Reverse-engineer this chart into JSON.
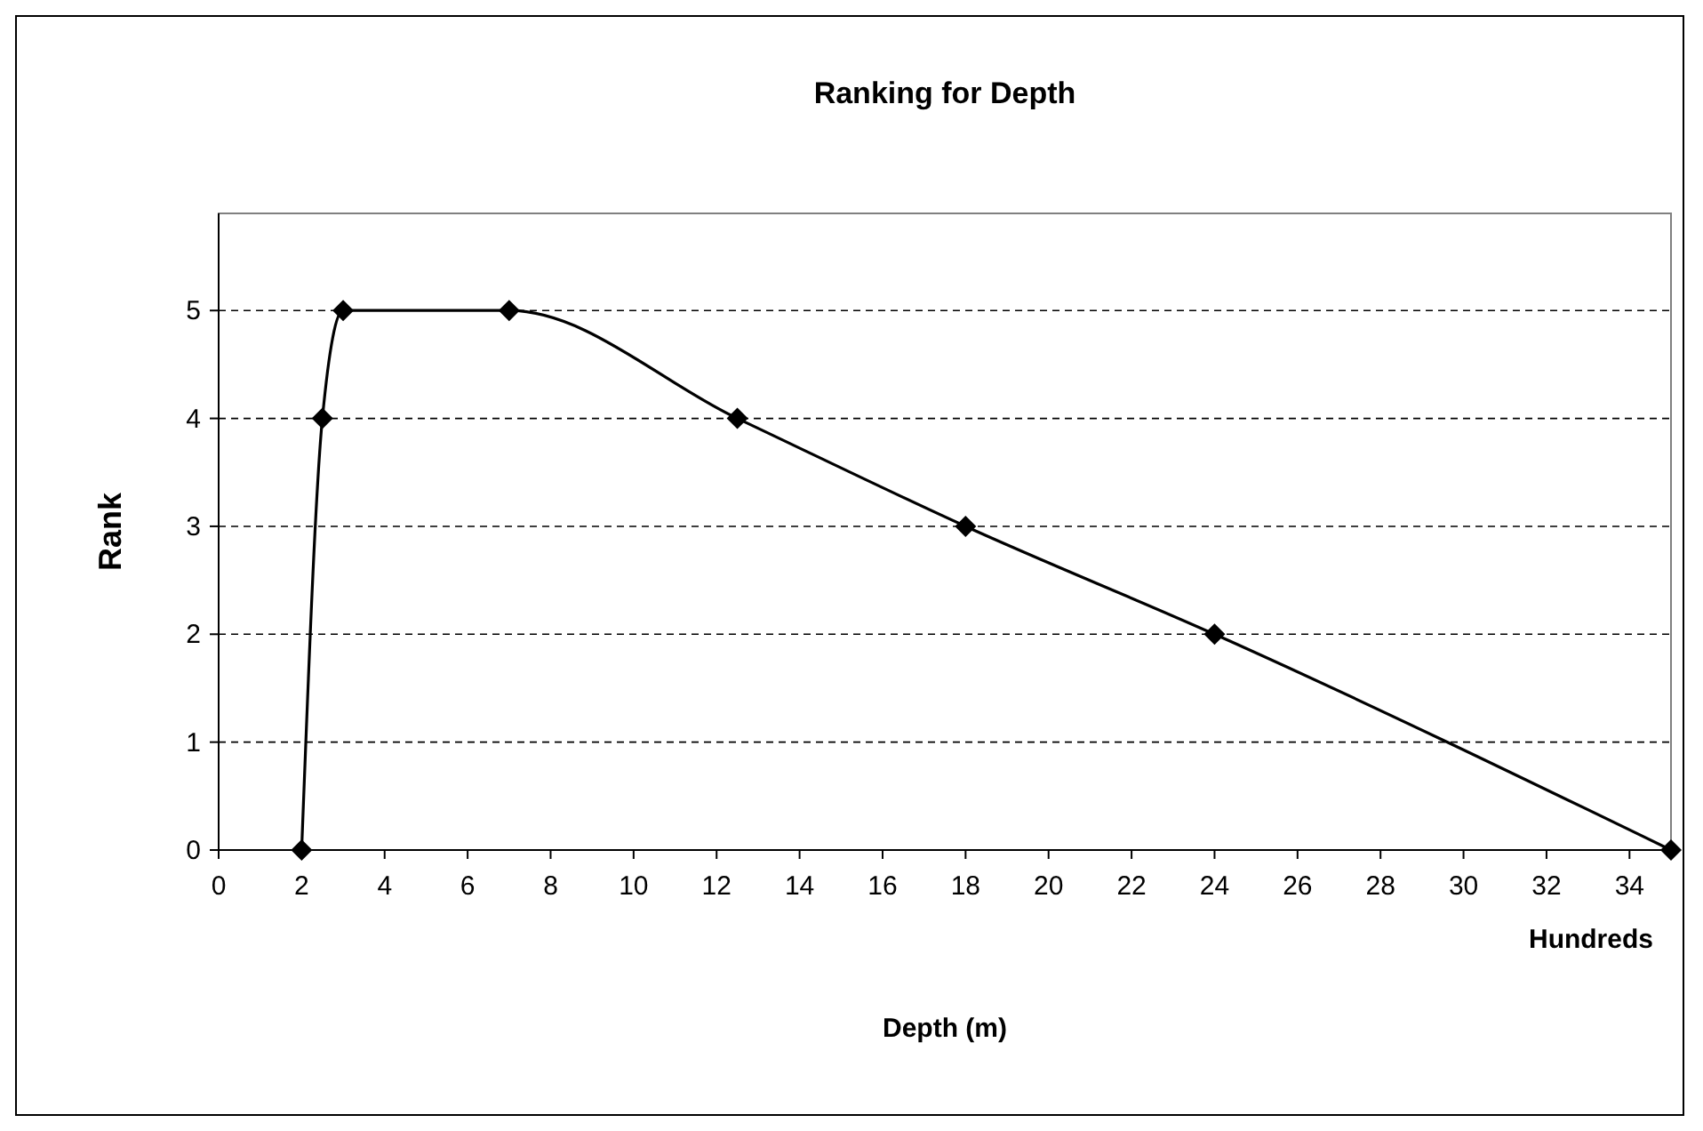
{
  "chart_data": {
    "type": "line",
    "title": "Ranking for Depth",
    "xlabel": "Depth (m)",
    "ylabel": "Rank",
    "annotations": [
      "Hundreds"
    ],
    "x": [
      2,
      2.5,
      3,
      7,
      12.5,
      18,
      24,
      35
    ],
    "series": [
      {
        "color": "#000000",
        "values": [
          0,
          4,
          5,
          5,
          4,
          3,
          2,
          0
        ]
      }
    ],
    "xlim": [
      0,
      35
    ],
    "xticks": [
      0,
      2,
      4,
      6,
      8,
      10,
      12,
      14,
      16,
      18,
      20,
      22,
      24,
      26,
      28,
      30,
      32,
      34
    ],
    "ylim": [
      0,
      5.9
    ],
    "yticks": [
      0,
      1,
      2,
      3,
      4,
      5
    ],
    "grid": "y",
    "marker": "diamond",
    "line_style": "solid"
  }
}
